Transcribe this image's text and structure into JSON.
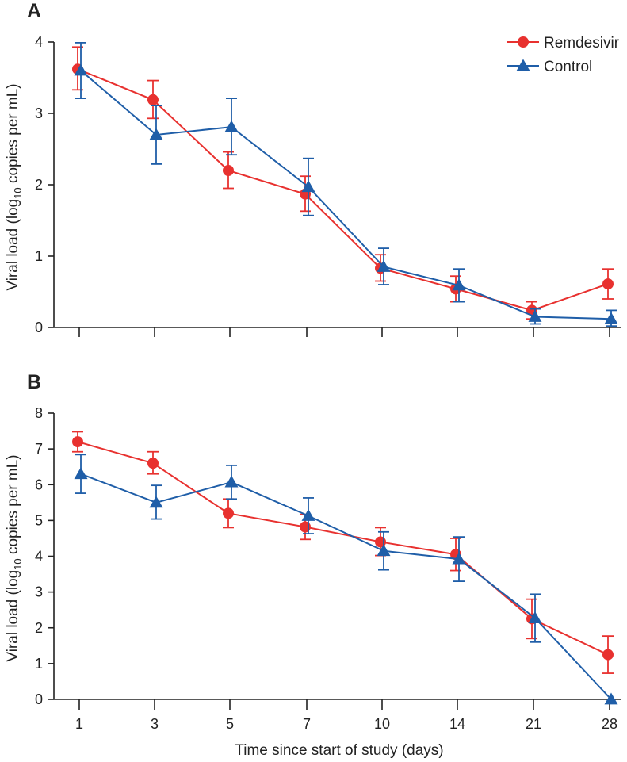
{
  "chart_data": [
    {
      "panel": "A",
      "type": "line",
      "xlabel": "",
      "ylabel": "Viral load (log10 copies per mL)",
      "ylim": [
        0,
        4
      ],
      "yticks": [
        0,
        1,
        2,
        3,
        4
      ],
      "categories": [
        "1",
        "3",
        "5",
        "7",
        "10",
        "14",
        "21",
        "28"
      ],
      "show_x_tick_labels": false,
      "grid": false,
      "legend": "top-right",
      "series": [
        {
          "name": "Remdesivir",
          "color": "#e8312f",
          "marker": "circle",
          "values": [
            3.62,
            3.19,
            2.2,
            1.87,
            0.83,
            0.54,
            0.24,
            0.61
          ],
          "error_low": [
            3.33,
            2.93,
            1.95,
            1.63,
            0.65,
            0.36,
            0.12,
            0.4
          ],
          "error_high": [
            3.93,
            3.46,
            2.46,
            2.12,
            1.02,
            0.72,
            0.36,
            0.82
          ]
        },
        {
          "name": "Control",
          "color": "#1f5ea8",
          "marker": "triangle",
          "values": [
            3.6,
            2.7,
            2.81,
            1.97,
            0.85,
            0.59,
            0.15,
            0.12
          ],
          "error_low": [
            3.21,
            2.29,
            2.42,
            1.57,
            0.6,
            0.36,
            0.05,
            0.02
          ],
          "error_high": [
            3.99,
            3.11,
            3.21,
            2.37,
            1.11,
            0.82,
            0.26,
            0.24
          ]
        }
      ]
    },
    {
      "panel": "B",
      "type": "line",
      "xlabel": "Time since start of study (days)",
      "ylabel": "Viral load (log10 copies per mL)",
      "ylim": [
        0,
        8
      ],
      "yticks": [
        0,
        1,
        2,
        3,
        4,
        5,
        6,
        7,
        8
      ],
      "categories": [
        "1",
        "3",
        "5",
        "7",
        "10",
        "14",
        "21",
        "28"
      ],
      "show_x_tick_labels": true,
      "grid": false,
      "legend": "none",
      "series": [
        {
          "name": "Remdesivir",
          "color": "#e8312f",
          "marker": "circle",
          "values": [
            7.2,
            6.6,
            5.2,
            4.82,
            4.4,
            4.05,
            2.25,
            1.25
          ],
          "error_low": [
            6.92,
            6.3,
            4.8,
            4.47,
            4.02,
            3.6,
            1.7,
            0.73
          ],
          "error_high": [
            7.48,
            6.92,
            5.6,
            5.17,
            4.8,
            4.5,
            2.8,
            1.77
          ]
        },
        {
          "name": "Control",
          "color": "#1f5ea8",
          "marker": "triangle",
          "values": [
            6.3,
            5.5,
            6.07,
            5.13,
            4.15,
            3.92,
            2.27,
            0.0
          ],
          "error_low": [
            5.76,
            5.04,
            5.6,
            4.63,
            3.62,
            3.3,
            1.6,
            0.0
          ],
          "error_high": [
            6.84,
            5.98,
            6.54,
            5.63,
            4.68,
            4.54,
            2.94,
            0.0
          ]
        }
      ]
    }
  ]
}
